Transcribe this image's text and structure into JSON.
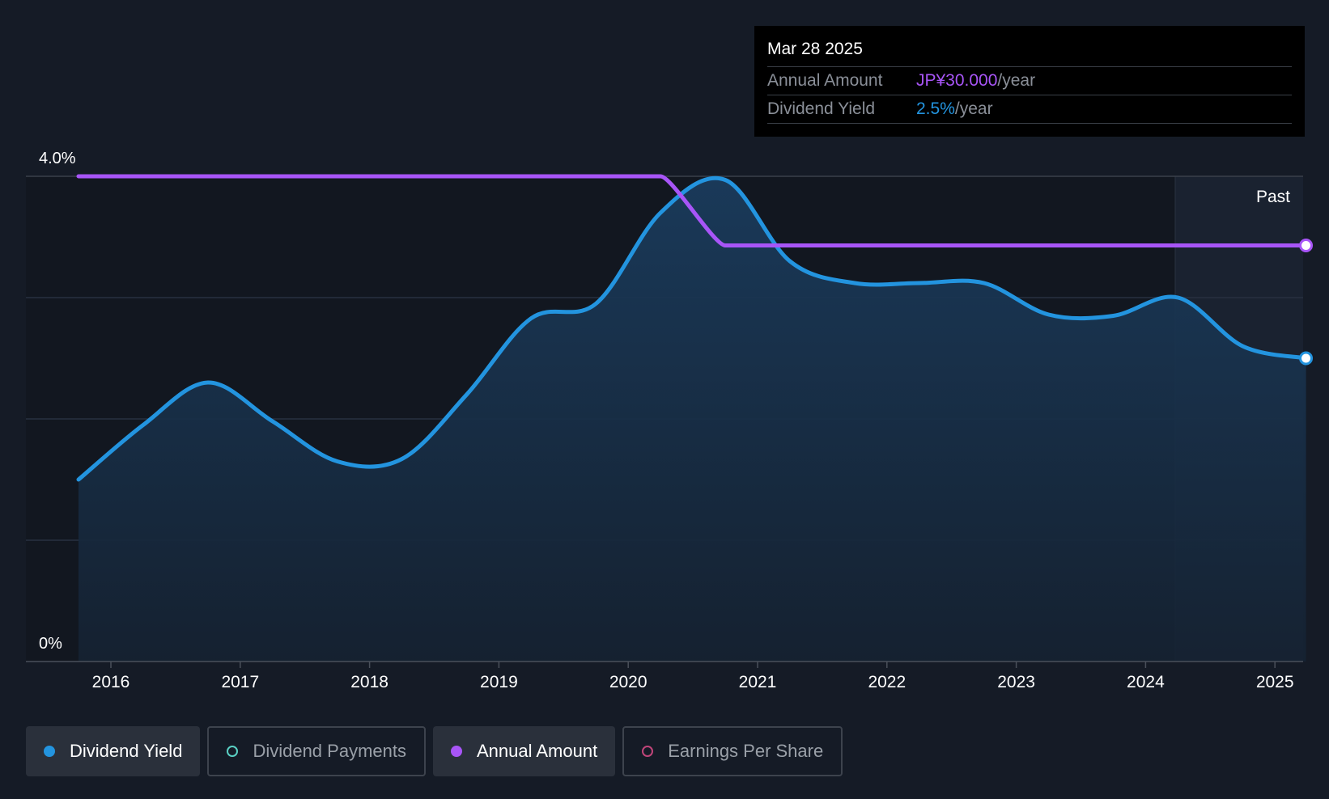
{
  "chart_data": {
    "type": "line",
    "x_ticks": [
      "2016",
      "2017",
      "2018",
      "2019",
      "2020",
      "2021",
      "2022",
      "2023",
      "2024",
      "2025"
    ],
    "y_tick_labels": [
      "4.0%",
      "0%"
    ],
    "ylim": [
      0,
      4.0
    ],
    "past_label": "Past",
    "series": [
      {
        "name": "Dividend Yield",
        "color": "#2394df",
        "x": [
          2015.75,
          2016.25,
          2016.75,
          2017.25,
          2017.75,
          2018.25,
          2018.75,
          2019.25,
          2019.75,
          2020.25,
          2020.75,
          2021.25,
          2021.75,
          2022.25,
          2022.75,
          2023.25,
          2023.75,
          2024.25,
          2024.75,
          2025.24
        ],
        "values": [
          1.5,
          1.95,
          2.3,
          1.98,
          1.65,
          1.67,
          2.2,
          2.83,
          2.95,
          3.7,
          3.97,
          3.3,
          3.12,
          3.12,
          3.12,
          2.86,
          2.85,
          3.0,
          2.6,
          2.5
        ]
      },
      {
        "name": "Annual Amount",
        "color": "#a855f7",
        "x": [
          2015.75,
          2020.25,
          2020.4,
          2020.75,
          2025.24
        ],
        "values": [
          4.0,
          4.0,
          3.75,
          3.43,
          3.43
        ]
      }
    ]
  },
  "tooltip": {
    "date": "Mar 28 2025",
    "rows": [
      {
        "label": "Annual Amount",
        "value": "JP¥30.000",
        "unit": "/year"
      },
      {
        "label": "Dividend Yield",
        "value": "2.5%",
        "unit": "/year"
      }
    ]
  },
  "legend": [
    {
      "label": "Dividend Yield",
      "active": true
    },
    {
      "label": "Dividend Payments",
      "active": false
    },
    {
      "label": "Annual Amount",
      "active": true
    },
    {
      "label": "Earnings Per Share",
      "active": false
    }
  ]
}
